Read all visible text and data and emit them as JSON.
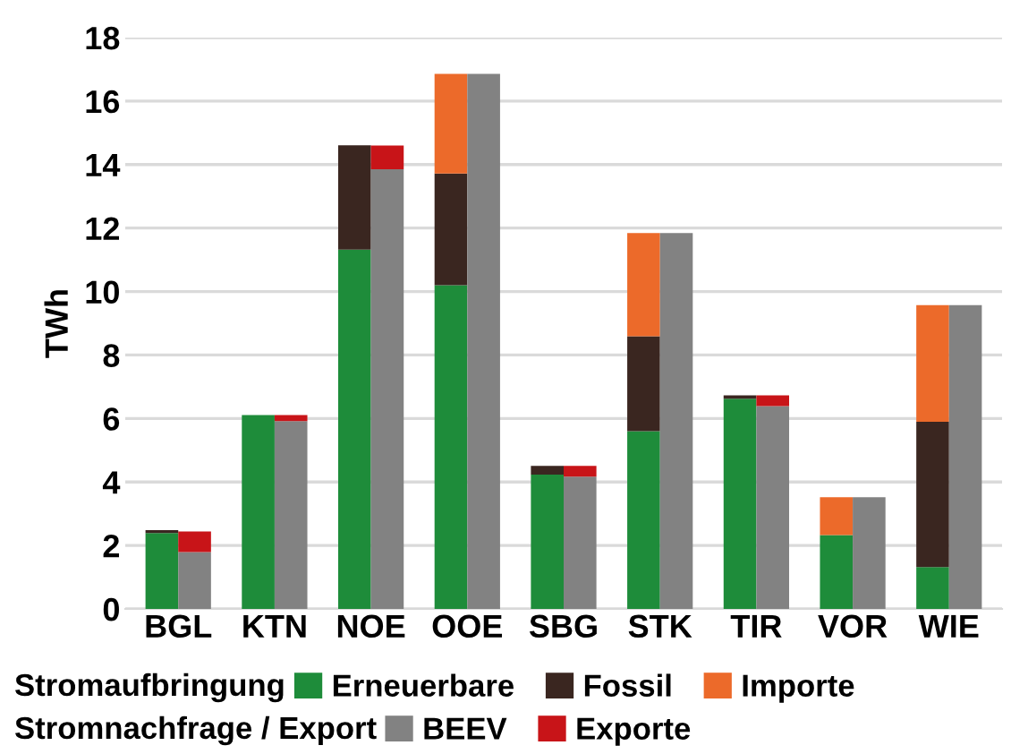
{
  "chart_data": [
    {
      "type": "bar",
      "stacked": true,
      "ylabel": "TWh",
      "categories": [
        "BGL",
        "KTN",
        "NOE",
        "OOE",
        "SBG",
        "STK",
        "TIR",
        "VOR",
        "WIE"
      ],
      "series": [
        {
          "name": "Erneuerbare",
          "color": "#1e8c3a",
          "values": [
            2.39,
            6.11,
            11.32,
            10.2,
            4.23,
            5.6,
            6.62,
            2.33,
            1.32
          ]
        },
        {
          "name": "Fossil",
          "color": "#3a2620",
          "values": [
            0.09,
            null,
            3.29,
            3.52,
            0.28,
            2.99,
            0.11,
            null,
            4.58
          ]
        },
        {
          "name": "Importe",
          "color": "#ec6a2a",
          "values": [
            null,
            null,
            null,
            3.14,
            null,
            3.25,
            null,
            1.19,
            3.67
          ]
        }
      ],
      "annotations": [
        "Stromaufbringung"
      ],
      "ylim": [
        0,
        18
      ],
      "yticks": [
        0,
        2,
        4,
        6,
        8,
        10,
        12,
        14,
        16,
        18
      ],
      "grid": "y",
      "legend": "bottom"
    },
    {
      "type": "bar",
      "stacked": true,
      "series": [
        {
          "name": "BEEV",
          "color": "#828282",
          "values": [
            1.79,
            5.92,
            13.85,
            16.86,
            4.17,
            11.84,
            6.39,
            3.52,
            9.57
          ]
        },
        {
          "name": "Exporte",
          "color": "#c81418",
          "values": [
            0.65,
            0.19,
            0.75,
            null,
            0.34,
            null,
            0.34,
            null,
            null
          ]
        }
      ],
      "annotations": [
        "Stromnachfrage / Export"
      ],
      "ylim": [
        0,
        18
      ],
      "yticks": [
        0,
        2,
        4,
        6,
        8,
        10,
        12,
        14,
        16,
        18
      ],
      "tick_labels": false,
      "legend": "bottom"
    }
  ]
}
